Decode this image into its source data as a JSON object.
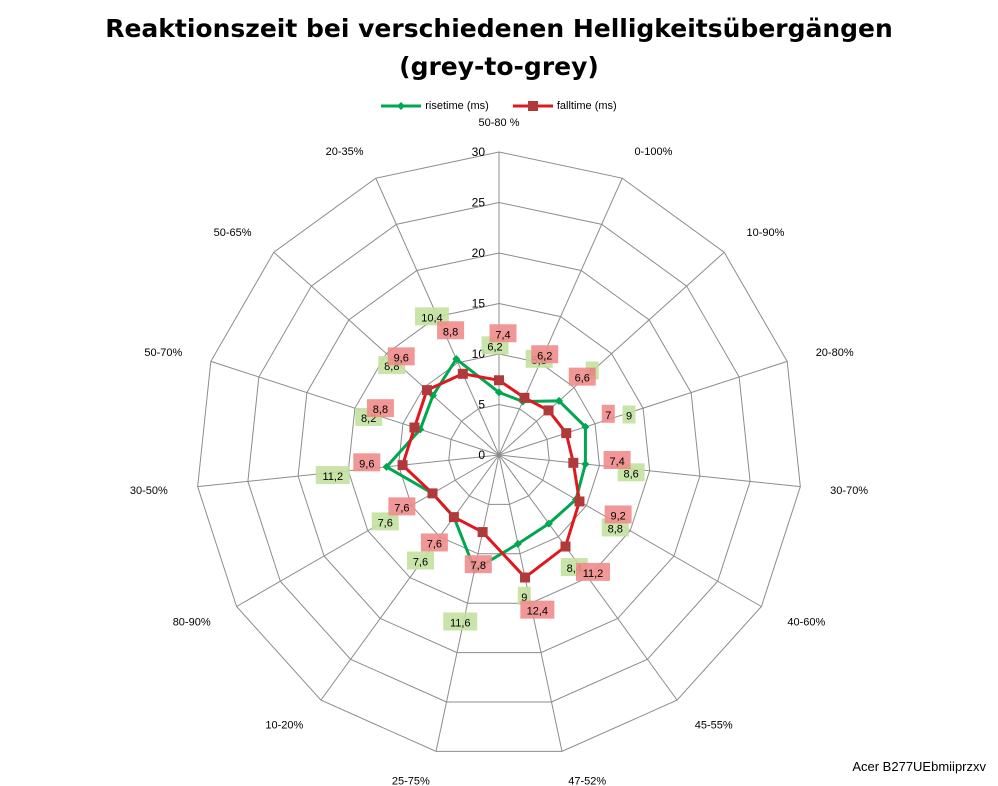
{
  "chart_data": {
    "type": "radar",
    "title_line1": "Reaktionszeit bei verschiedenen Helligkeitsübergängen",
    "title_line2": "(grey-to-grey)",
    "categories": [
      "50-80 %",
      "0-100%",
      "10-90%",
      "20-80%",
      "30-70%",
      "40-60%",
      "45-55%",
      "47-52%",
      "25-75%",
      "10-20%",
      "80-90%",
      "30-50%",
      "50-70%",
      "50-65%",
      "20-35%"
    ],
    "radial_ticks": [
      "0",
      "5",
      "10",
      "15",
      "20",
      "25",
      "30"
    ],
    "rmax": 30,
    "series": [
      {
        "name": "risetime (ms)",
        "color": "#00a650",
        "label_bg": "#c3e1a0",
        "values": [
          6.2,
          5.8,
          8,
          9,
          8.6,
          8.8,
          8.4,
          9,
          11.6,
          7.6,
          7.6,
          11.2,
          8.2,
          8.8,
          10.4
        ],
        "labels": [
          "6,2",
          "5,8",
          "8",
          "9",
          "8,6",
          "8,8",
          "8,4",
          "9",
          "11,6",
          "7,6",
          "7,6",
          "11,2",
          "8,2",
          "8,8",
          "10,4"
        ]
      },
      {
        "name": "falltime (ms)",
        "color": "#e0171f",
        "label_bg": "#f08c8c",
        "values": [
          7.4,
          6.2,
          6.6,
          7,
          7.4,
          9.2,
          11.2,
          12.4,
          7.8,
          7.6,
          7.6,
          9.6,
          8.8,
          9.6,
          8.8
        ],
        "labels": [
          "7,4",
          "6,2",
          "6,6",
          "7",
          "7,4",
          "9,2",
          "11,2",
          "12,4",
          "7,8",
          "7,6",
          "7,6",
          "9,6",
          "8,8",
          "9,6",
          "8,8"
        ]
      }
    ]
  },
  "credit": "Acer B277UEbmiiprzxv"
}
